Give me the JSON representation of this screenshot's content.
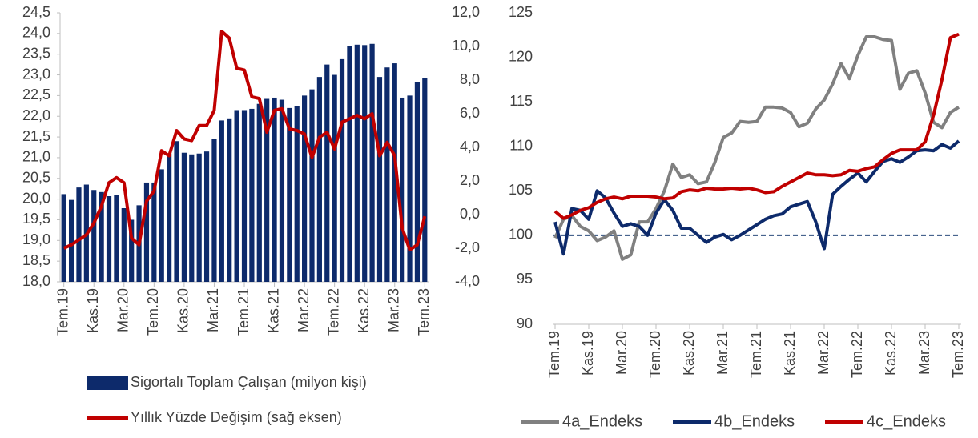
{
  "chart_data": [
    {
      "type": "bar",
      "categories": [
        "Tem.19",
        null,
        null,
        null,
        "Kas.19",
        null,
        null,
        null,
        "Mar.20",
        null,
        null,
        null,
        "Tem.20",
        null,
        null,
        null,
        "Kas.20",
        null,
        null,
        null,
        "Mar.21",
        null,
        null,
        null,
        "Tem.21",
        null,
        null,
        null,
        "Kas.21",
        null,
        null,
        null,
        "Mar.22",
        null,
        null,
        null,
        "Tem.22",
        null,
        null,
        null,
        "Kas.22",
        null,
        null,
        null,
        "Mar.23",
        null,
        null,
        null,
        "Tem.23"
      ],
      "series": [
        {
          "name": "Sigortalı Toplam Çalışan (milyon kişi)",
          "type": "bar",
          "color": "#0d2a6b",
          "values": [
            20.12,
            19.98,
            20.28,
            20.35,
            20.22,
            20.17,
            20.07,
            20.1,
            19.78,
            19.5,
            19.85,
            20.4,
            20.4,
            20.72,
            21.1,
            21.4,
            21.12,
            21.08,
            21.1,
            21.15,
            21.45,
            21.9,
            21.95,
            22.15,
            22.15,
            22.18,
            22.3,
            22.42,
            22.45,
            22.4,
            22.2,
            22.25,
            22.5,
            22.65,
            22.95,
            23.25,
            23.0,
            23.38,
            23.7,
            23.73,
            23.72,
            23.75,
            22.95,
            23.18,
            23.28,
            22.45,
            22.5,
            22.83,
            22.92
          ]
        },
        {
          "name": "Yıllık Yüzde Değişim (sağ eksen)",
          "type": "line",
          "axis": "y2",
          "color": "#c00000",
          "values": [
            -2.0,
            -1.8,
            -1.5,
            -1.2,
            -0.5,
            0.5,
            1.9,
            2.2,
            1.9,
            -1.4,
            -1.8,
            0.8,
            1.4,
            3.8,
            3.5,
            5.0,
            4.5,
            4.4,
            5.3,
            5.3,
            6.2,
            10.9,
            10.5,
            8.7,
            8.6,
            7.0,
            6.9,
            4.9,
            6.2,
            6.3,
            5.1,
            5.0,
            4.8,
            3.4,
            4.6,
            4.9,
            3.9,
            5.5,
            5.7,
            5.9,
            5.7,
            6.0,
            3.5,
            4.3,
            3.5,
            -0.8,
            -2.1,
            -1.8,
            -0.1
          ]
        }
      ],
      "ylim": [
        18,
        24.5
      ],
      "yticks": [
        {
          "value": 18,
          "label": "18,0"
        },
        {
          "value": 18.5,
          "label": "18,5"
        },
        {
          "value": 19,
          "label": "19,0"
        },
        {
          "value": 19.5,
          "label": "19,5"
        },
        {
          "value": 20,
          "label": "20,0"
        },
        {
          "value": 20.5,
          "label": "20,5"
        },
        {
          "value": 21,
          "label": "21,0"
        },
        {
          "value": 21.5,
          "label": "21,5"
        },
        {
          "value": 22,
          "label": "22,0"
        },
        {
          "value": 22.5,
          "label": "22,5"
        },
        {
          "value": 23,
          "label": "23,0"
        },
        {
          "value": 23.5,
          "label": "23,5"
        },
        {
          "value": 24,
          "label": "24,0"
        },
        {
          "value": 24.5,
          "label": "24,5"
        }
      ],
      "y2lim": [
        -4,
        12
      ],
      "y2ticks": [
        {
          "value": -4,
          "label": "-4,0"
        },
        {
          "value": -2,
          "label": "-2,0"
        },
        {
          "value": 0,
          "label": "0,0"
        },
        {
          "value": 2,
          "label": "2,0"
        },
        {
          "value": 4,
          "label": "4,0"
        },
        {
          "value": 6,
          "label": "6,0"
        },
        {
          "value": 8,
          "label": "8,0"
        },
        {
          "value": 10,
          "label": "10,0"
        },
        {
          "value": 12,
          "label": "12,0"
        }
      ],
      "legend": "bottom"
    },
    {
      "type": "line",
      "categories": [
        "Tem.19",
        null,
        null,
        null,
        "Kas.19",
        null,
        null,
        null,
        "Mar.20",
        null,
        null,
        null,
        "Tem.20",
        null,
        null,
        null,
        "Kas.20",
        null,
        null,
        null,
        "Mar.21",
        null,
        null,
        null,
        "Tem.21",
        null,
        null,
        null,
        "Kas.21",
        null,
        null,
        null,
        "Mar.22",
        null,
        null,
        null,
        "Tem.22",
        null,
        null,
        null,
        "Kas.22",
        null,
        null,
        null,
        "Mar.23",
        null,
        null,
        null,
        "Tem.23"
      ],
      "series": [
        {
          "name": "4a_Endeks",
          "color": "#808080",
          "values": [
            99.7,
            101.8,
            102.2,
            101.0,
            100.5,
            99.4,
            99.8,
            100.5,
            97.3,
            97.8,
            101.5,
            101.5,
            103.0,
            105.0,
            108.0,
            106.5,
            106.8,
            105.8,
            106.0,
            108.2,
            111.0,
            111.5,
            112.8,
            112.7,
            112.8,
            114.4,
            114.4,
            114.3,
            113.8,
            112.2,
            112.6,
            114.2,
            115.2,
            117.0,
            119.3,
            117.6,
            120.2,
            122.3,
            122.3,
            122.0,
            121.9,
            116.4,
            118.2,
            118.5,
            116.0,
            112.7,
            112.1,
            113.8,
            114.4
          ]
        },
        {
          "name": "4b_Endeks",
          "color": "#0d2a6b",
          "values": [
            101.5,
            97.9,
            103.0,
            102.8,
            101.8,
            105.0,
            104.2,
            102.5,
            101.0,
            101.3,
            101.0,
            100.0,
            102.5,
            104.0,
            102.8,
            100.8,
            100.8,
            100.0,
            99.2,
            99.8,
            100.1,
            99.5,
            100.0,
            100.6,
            101.2,
            101.8,
            102.2,
            102.4,
            103.2,
            103.5,
            103.8,
            101.5,
            98.5,
            104.6,
            105.5,
            106.3,
            107.0,
            106.0,
            107.2,
            108.3,
            108.6,
            108.2,
            108.8,
            109.5,
            109.6,
            109.5,
            110.2,
            109.8,
            110.6
          ]
        },
        {
          "name": "4c_Endeks",
          "color": "#c00000",
          "values": [
            102.7,
            101.9,
            102.3,
            102.8,
            103.1,
            103.7,
            104.1,
            104.3,
            104.1,
            104.4,
            104.4,
            104.4,
            104.3,
            104.1,
            104.2,
            104.9,
            105.1,
            105.0,
            105.3,
            105.2,
            105.2,
            105.3,
            105.2,
            105.3,
            105.1,
            104.8,
            104.9,
            105.5,
            106.0,
            106.5,
            107.0,
            106.8,
            106.8,
            106.7,
            106.8,
            107.3,
            107.2,
            107.5,
            107.7,
            108.5,
            109.2,
            109.6,
            109.6,
            109.6,
            110.5,
            113.5,
            117.5,
            122.2,
            122.6
          ]
        }
      ],
      "hline": 100,
      "ylim": [
        90,
        125
      ],
      "yticks": [
        90,
        95,
        100,
        105,
        110,
        115,
        120,
        125
      ],
      "legend": "bottom"
    }
  ]
}
